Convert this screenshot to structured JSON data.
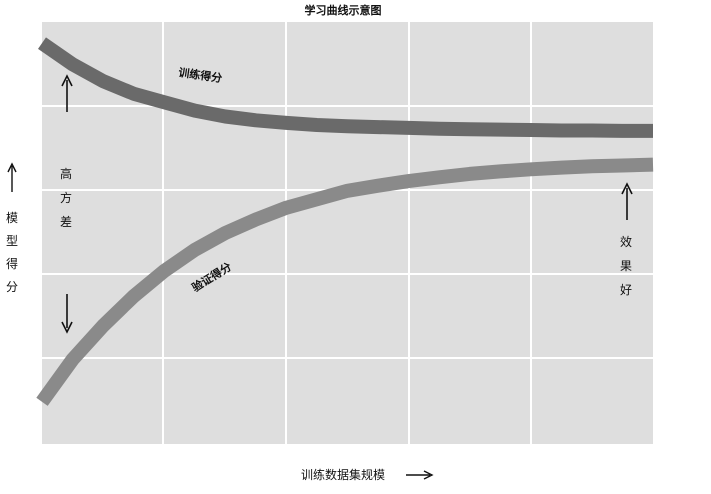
{
  "chart_data": {
    "type": "line",
    "title": "学习曲线示意图",
    "xlabel": "训练数据集规模",
    "ylabel": "模型得分",
    "grid": true,
    "ylim": [
      0,
      1
    ],
    "x": [
      0,
      0.05,
      0.1,
      0.15,
      0.2,
      0.25,
      0.3,
      0.35,
      0.4,
      0.45,
      0.5,
      0.55,
      0.6,
      0.65,
      0.7,
      0.75,
      0.8,
      0.85,
      0.9,
      0.95,
      1
    ],
    "series": [
      {
        "name": "训练得分",
        "color": "#6a6a6a",
        "values": [
          0.95,
          0.9,
          0.86,
          0.83,
          0.81,
          0.79,
          0.776,
          0.767,
          0.761,
          0.756,
          0.753,
          0.751,
          0.749,
          0.747,
          0.746,
          0.745,
          0.744,
          0.743,
          0.743,
          0.742,
          0.742
        ]
      },
      {
        "name": "验证得分",
        "color": "#8a8a8a",
        "values": [
          0.1,
          0.2,
          0.28,
          0.35,
          0.41,
          0.46,
          0.5,
          0.532,
          0.56,
          0.58,
          0.6,
          0.612,
          0.623,
          0.632,
          0.64,
          0.646,
          0.651,
          0.655,
          0.658,
          0.66,
          0.662
        ]
      }
    ],
    "annotations": {
      "high_variance": [
        "高",
        "方",
        "差"
      ],
      "good_effect": [
        "效",
        "果",
        "好"
      ]
    }
  },
  "colors": {
    "plot_background": "#dedede",
    "grid": "#ffffff",
    "text": "#111111"
  },
  "icons": {
    "axis_arrow": "arrow",
    "up": "up-arrow-icon",
    "down": "down-arrow-icon",
    "right": "right-arrow-icon"
  }
}
